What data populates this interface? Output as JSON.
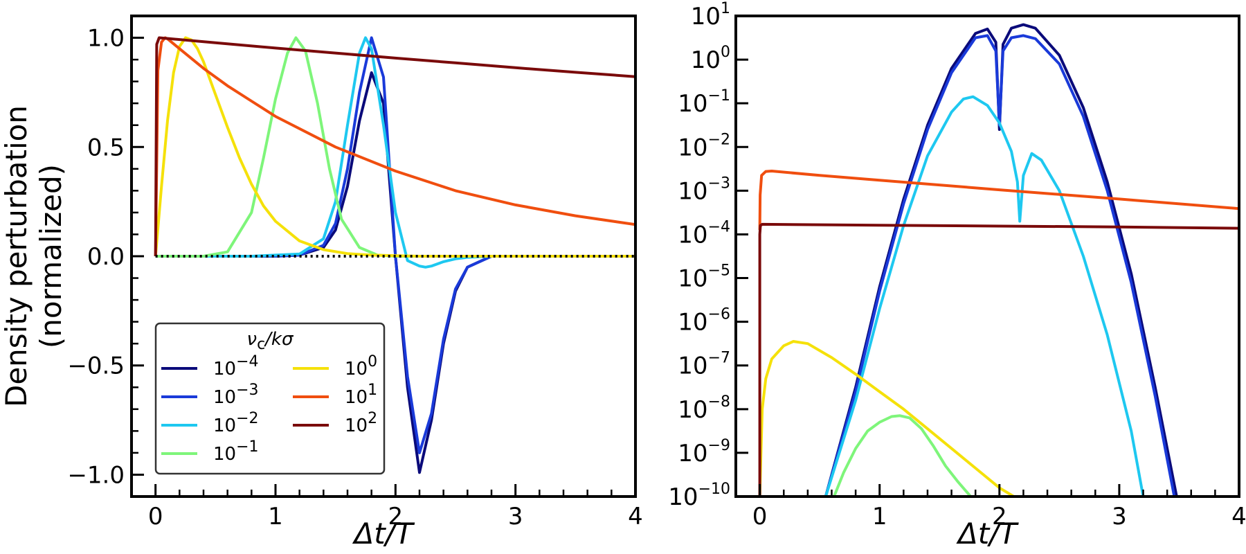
{
  "chart_data": [
    {
      "type": "line",
      "panel": "left",
      "xlabel": "Δt/T",
      "ylabel_line1": "Density perturbation",
      "ylabel_line2": "(normalized)",
      "xlim": [
        -0.2,
        4
      ],
      "ylim": [
        -1.1,
        1.1
      ],
      "xticks": [
        0,
        1,
        2,
        3,
        4
      ],
      "xtick_labels": [
        "0",
        "1",
        "2",
        "3",
        "4"
      ],
      "yticks": [
        -1.0,
        -0.5,
        0.0,
        0.5,
        1.0
      ],
      "ytick_labels": [
        "−1.0",
        "−0.5",
        "0.0",
        "0.5",
        "1.0"
      ],
      "zero_line_style": "dotted",
      "legend": {
        "title_main": "ν",
        "title_sub": "c",
        "title_tail": "/kσ",
        "placement": "lower-left",
        "ncols": 2
      },
      "series": [
        {
          "name": "1e-4",
          "label_base": "10",
          "label_exp": "−4",
          "color": "#0a0a7a",
          "x": [
            0.0,
            0.6,
            1.0,
            1.2,
            1.4,
            1.5,
            1.6,
            1.7,
            1.8,
            1.9,
            2.0,
            2.1,
            2.2,
            2.3,
            2.4,
            2.5,
            2.6,
            2.8,
            3.0,
            4.0
          ],
          "y": [
            0.0,
            0.0,
            0.0,
            0.005,
            0.04,
            0.12,
            0.32,
            0.62,
            0.84,
            0.7,
            0.0,
            -0.6,
            -0.99,
            -0.75,
            -0.4,
            -0.16,
            -0.05,
            0.0,
            0.0,
            0.0
          ]
        },
        {
          "name": "1e-3",
          "label_base": "10",
          "label_exp": "−3",
          "color": "#1a3ad9",
          "x": [
            0.0,
            0.6,
            1.0,
            1.2,
            1.4,
            1.5,
            1.6,
            1.7,
            1.8,
            1.9,
            2.0,
            2.1,
            2.2,
            2.3,
            2.4,
            2.5,
            2.6,
            2.8,
            3.0,
            4.0
          ],
          "y": [
            0.0,
            0.0,
            0.0,
            0.005,
            0.05,
            0.15,
            0.4,
            0.75,
            1.0,
            0.82,
            0.0,
            -0.55,
            -0.9,
            -0.72,
            -0.38,
            -0.15,
            -0.05,
            0.0,
            0.0,
            0.0
          ]
        },
        {
          "name": "1e-2",
          "label_base": "10",
          "label_exp": "−2",
          "color": "#1ec8f0",
          "x": [
            0.0,
            0.8,
            1.2,
            1.4,
            1.5,
            1.6,
            1.7,
            1.75,
            1.8,
            1.9,
            2.0,
            2.1,
            2.2,
            2.25,
            2.3,
            2.4,
            2.5,
            2.6,
            2.8,
            4.0
          ],
          "y": [
            0.0,
            0.0,
            0.01,
            0.08,
            0.25,
            0.6,
            0.93,
            1.0,
            0.95,
            0.6,
            0.2,
            -0.02,
            -0.045,
            -0.05,
            -0.045,
            -0.025,
            -0.012,
            -0.005,
            0.0,
            0.0
          ]
        },
        {
          "name": "1e-1",
          "label_base": "10",
          "label_exp": "−1",
          "color": "#7ef57a",
          "x": [
            0.0,
            0.4,
            0.6,
            0.8,
            0.9,
            1.0,
            1.1,
            1.17,
            1.25,
            1.35,
            1.45,
            1.55,
            1.7,
            1.85,
            2.0,
            4.0
          ],
          "y": [
            0.0,
            0.0,
            0.02,
            0.2,
            0.45,
            0.72,
            0.93,
            1.0,
            0.94,
            0.7,
            0.4,
            0.17,
            0.04,
            0.005,
            0.0,
            0.0
          ]
        },
        {
          "name": "1e0",
          "label_base": "10",
          "label_exp": "0",
          "color": "#f5e10a",
          "x": [
            0.0,
            0.05,
            0.1,
            0.15,
            0.2,
            0.25,
            0.3,
            0.35,
            0.4,
            0.5,
            0.6,
            0.7,
            0.8,
            0.9,
            1.0,
            1.2,
            1.4,
            1.6,
            1.8,
            2.2,
            4.0
          ],
          "y": [
            0.0,
            0.32,
            0.62,
            0.84,
            0.96,
            1.0,
            0.99,
            0.95,
            0.89,
            0.74,
            0.59,
            0.45,
            0.33,
            0.23,
            0.16,
            0.07,
            0.03,
            0.012,
            0.005,
            0.0,
            0.0
          ]
        },
        {
          "name": "1e1",
          "label_base": "10",
          "label_exp": "1",
          "color": "#f04e0f",
          "x": [
            0.0,
            0.02,
            0.05,
            0.08,
            0.1,
            0.2,
            0.4,
            0.6,
            0.8,
            1.0,
            1.5,
            2.0,
            2.5,
            3.0,
            3.5,
            4.0
          ],
          "y": [
            0.0,
            0.85,
            0.98,
            1.0,
            0.995,
            0.95,
            0.86,
            0.78,
            0.71,
            0.64,
            0.5,
            0.39,
            0.3,
            0.235,
            0.185,
            0.145
          ]
        },
        {
          "name": "1e2",
          "label_base": "10",
          "label_exp": "2",
          "color": "#7a0a0a",
          "x": [
            0.0,
            0.01,
            0.03,
            0.5,
            1.0,
            1.5,
            2.0,
            2.5,
            3.0,
            3.5,
            4.0
          ],
          "y": [
            0.0,
            0.97,
            1.0,
            0.977,
            0.953,
            0.93,
            0.907,
            0.885,
            0.863,
            0.842,
            0.822
          ]
        }
      ]
    },
    {
      "type": "line",
      "panel": "right",
      "yscale": "log",
      "xlabel": "Δt/T",
      "xlim": [
        -0.2,
        4
      ],
      "ylim_log10": [
        -10,
        1
      ],
      "xticks": [
        0,
        1,
        2,
        3,
        4
      ],
      "xtick_labels": [
        "0",
        "1",
        "2",
        "3",
        "4"
      ],
      "yticks_log10": [
        1,
        0,
        -1,
        -2,
        -3,
        -4,
        -5,
        -6,
        -7,
        -8,
        -9,
        -10
      ],
      "ytick_base": "10",
      "ytick_exps": [
        "1",
        "0",
        "−1",
        "−2",
        "−3",
        "−4",
        "−5",
        "−6",
        "−7",
        "−8",
        "−9",
        "−10"
      ],
      "series": [
        {
          "name": "1e-4",
          "color": "#0a0a7a",
          "x": [
            0.55,
            0.8,
            1.0,
            1.2,
            1.4,
            1.6,
            1.8,
            1.9,
            1.97,
            2.0,
            2.03,
            2.1,
            2.2,
            2.3,
            2.5,
            2.7,
            2.9,
            3.1,
            3.3,
            3.5
          ],
          "log10y": [
            -10.0,
            -7.5,
            -5.2,
            -3.2,
            -1.5,
            -0.2,
            0.6,
            0.7,
            0.4,
            -1.6,
            0.35,
            0.72,
            0.8,
            0.72,
            0.1,
            -1.1,
            -2.8,
            -4.9,
            -7.5,
            -10.3
          ]
        },
        {
          "name": "1e-3",
          "color": "#1a3ad9",
          "x": [
            0.55,
            0.8,
            1.0,
            1.2,
            1.4,
            1.6,
            1.8,
            1.9,
            1.97,
            2.0,
            2.03,
            2.1,
            2.2,
            2.3,
            2.5,
            2.7,
            2.9,
            3.1,
            3.3,
            3.48
          ],
          "log10y": [
            -10.0,
            -7.6,
            -5.3,
            -3.3,
            -1.6,
            -0.3,
            0.5,
            0.55,
            0.2,
            -1.5,
            0.2,
            0.5,
            0.55,
            0.48,
            -0.1,
            -1.3,
            -3.0,
            -5.1,
            -7.7,
            -10.3
          ]
        },
        {
          "name": "1e-2",
          "color": "#1ec8f0",
          "x": [
            0.55,
            0.8,
            1.0,
            1.2,
            1.4,
            1.6,
            1.7,
            1.78,
            1.9,
            2.0,
            2.1,
            2.15,
            2.17,
            2.2,
            2.27,
            2.35,
            2.5,
            2.7,
            2.9,
            3.1,
            3.2
          ],
          "log10y": [
            -10.0,
            -7.8,
            -5.7,
            -3.8,
            -2.2,
            -1.2,
            -0.9,
            -0.85,
            -1.05,
            -1.45,
            -2.1,
            -2.8,
            -3.7,
            -2.65,
            -2.15,
            -2.3,
            -3.0,
            -4.5,
            -6.3,
            -8.5,
            -10.0
          ]
        },
        {
          "name": "1e-1",
          "color": "#7ef57a",
          "x": [
            0.62,
            0.7,
            0.8,
            0.9,
            1.0,
            1.1,
            1.17,
            1.25,
            1.35,
            1.45,
            1.55,
            1.65,
            1.76
          ],
          "log10y": [
            -10.0,
            -9.45,
            -8.9,
            -8.5,
            -8.3,
            -8.17,
            -8.15,
            -8.2,
            -8.45,
            -8.85,
            -9.3,
            -9.65,
            -10.0
          ]
        },
        {
          "name": "1e0",
          "color": "#f5e10a",
          "x": [
            0.0,
            0.02,
            0.05,
            0.1,
            0.2,
            0.28,
            0.4,
            0.6,
            0.8,
            1.0,
            1.2,
            1.4,
            1.6,
            1.8,
            2.0,
            2.12
          ],
          "log10y": [
            -10.0,
            -8.0,
            -7.3,
            -6.85,
            -6.55,
            -6.45,
            -6.5,
            -6.82,
            -7.2,
            -7.6,
            -8.0,
            -8.45,
            -8.9,
            -9.35,
            -9.8,
            -10.0
          ]
        },
        {
          "name": "1e1",
          "color": "#f04e0f",
          "x": [
            0.0,
            0.003,
            0.015,
            0.05,
            0.1,
            0.5,
            1.0,
            2.0,
            3.0,
            4.0
          ],
          "log10y": [
            -3.9,
            -3.1,
            -2.65,
            -2.56,
            -2.55,
            -2.65,
            -2.76,
            -2.98,
            -3.19,
            -3.41
          ]
        },
        {
          "name": "1e2",
          "color": "#7a0a0a",
          "x": [
            0.0,
            0.0,
            0.005,
            0.02,
            1.0,
            2.0,
            3.0,
            4.0
          ],
          "log10y": [
            -10.0,
            -4.0,
            -3.8,
            -3.77,
            -3.79,
            -3.81,
            -3.83,
            -3.86
          ]
        }
      ]
    }
  ]
}
